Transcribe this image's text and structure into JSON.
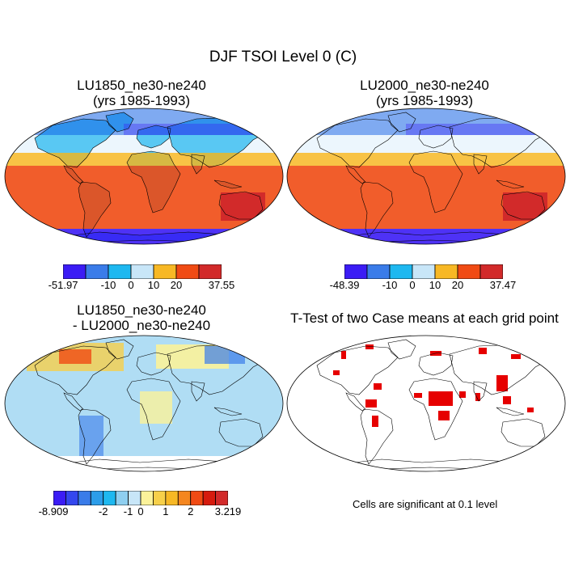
{
  "figure": {
    "title": "DJF TSOI Level 0 (C)"
  },
  "panels": [
    {
      "title_line1": "LU1850_ne30-ne240",
      "title_line2": "(yrs 1985-1993)",
      "colorbar": {
        "colors": [
          "#3b1cf5",
          "#3a7ce9",
          "#1eb8f0",
          "#c8e6f8",
          "#f7b825",
          "#f04b14",
          "#d22a2a"
        ],
        "labels": [
          "-51.97",
          "-10",
          "0",
          "10",
          "20",
          "37.55"
        ]
      }
    },
    {
      "title_line1": "LU2000_ne30-ne240",
      "title_line2": "(yrs 1985-1993)",
      "colorbar": {
        "colors": [
          "#3b1cf5",
          "#3a7ce9",
          "#1eb8f0",
          "#c8e6f8",
          "#f7b825",
          "#f04b14",
          "#d22a2a"
        ],
        "labels": [
          "-48.39",
          "-10",
          "0",
          "10",
          "20",
          "37.47"
        ]
      }
    },
    {
      "title_line1": "LU1850_ne30-ne240",
      "title_line2": "- LU2000_ne30-ne240",
      "colorbar": {
        "colors": [
          "#3b1cf5",
          "#3447ee",
          "#3a7ce9",
          "#2c9de9",
          "#1eb8f0",
          "#8fcff0",
          "#c8e6f8",
          "#fbf29a",
          "#f7d04a",
          "#f7b825",
          "#f4861f",
          "#f04b14",
          "#d61b0e",
          "#d22a2a"
        ],
        "labels": [
          "-8.909",
          "-2",
          "-1",
          "0",
          "1",
          "2",
          "3.219"
        ]
      }
    },
    {
      "title_line1": "T-Test of two Case means at each grid point",
      "note": "Cells are significant at 0.1 level",
      "significant_color": "#e60000"
    }
  ]
}
